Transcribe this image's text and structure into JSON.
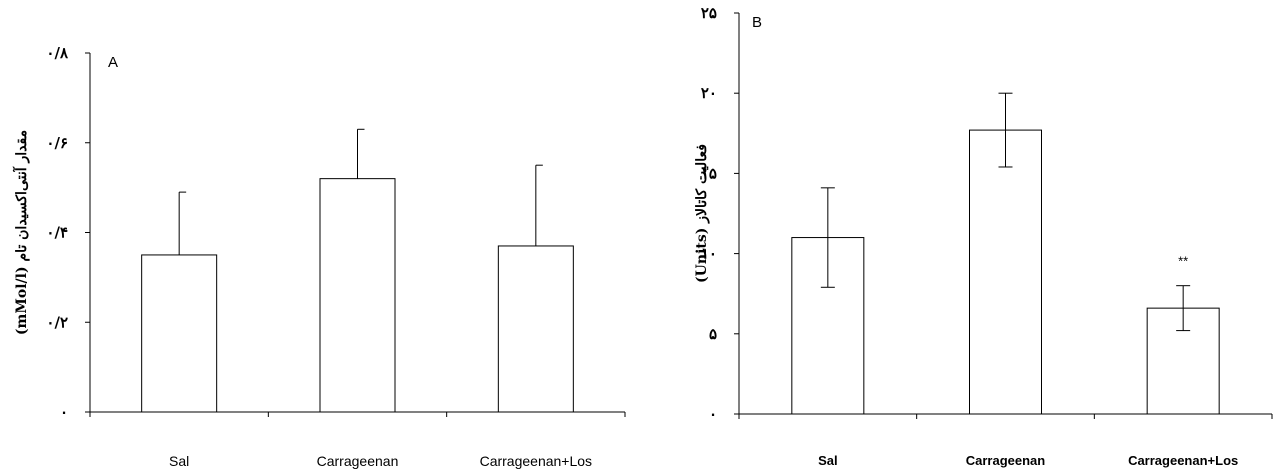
{
  "chart_data": [
    {
      "panel": "A",
      "type": "bar",
      "categories": [
        "Sal",
        "Carrageenan",
        "Carrageenan+Los"
      ],
      "values": [
        0.35,
        0.52,
        0.37
      ],
      "errors": [
        0.14,
        0.11,
        0.18
      ],
      "ylabel": "مقدار آنتی‌اکسیدان تام (mMol/l)",
      "ylim": [
        0,
        0.8
      ],
      "yticks": [
        {
          "value": 0,
          "label": "۰"
        },
        {
          "value": 0.2,
          "label": "۰/۲"
        },
        {
          "value": 0.4,
          "label": "۰/۴"
        },
        {
          "value": 0.6,
          "label": "۰/۶"
        },
        {
          "value": 0.8,
          "label": "۰/۸"
        }
      ],
      "annotations": [
        "",
        "",
        ""
      ],
      "grid": false,
      "bar_color": "#ffffff",
      "edge_color": "#000000"
    },
    {
      "panel": "B",
      "type": "bar",
      "categories": [
        "Sal",
        "Carrageenan",
        "Carrageenan+Los"
      ],
      "values": [
        11,
        17.7,
        6.6
      ],
      "errors": [
        3.1,
        2.3,
        1.4
      ],
      "ylabel": "فعالیت کاتالاز (Units)",
      "ylim": [
        0,
        25
      ],
      "yticks": [
        {
          "value": 0,
          "label": "۰"
        },
        {
          "value": 5,
          "label": "۵"
        },
        {
          "value": 10,
          "label": "۱۰"
        },
        {
          "value": 15,
          "label": "۱۵"
        },
        {
          "value": 20,
          "label": "۲۰"
        },
        {
          "value": 25,
          "label": "۲۵"
        }
      ],
      "annotations": [
        "",
        "",
        "**"
      ],
      "grid": false,
      "bar_color": "#ffffff",
      "edge_color": "#000000"
    }
  ]
}
